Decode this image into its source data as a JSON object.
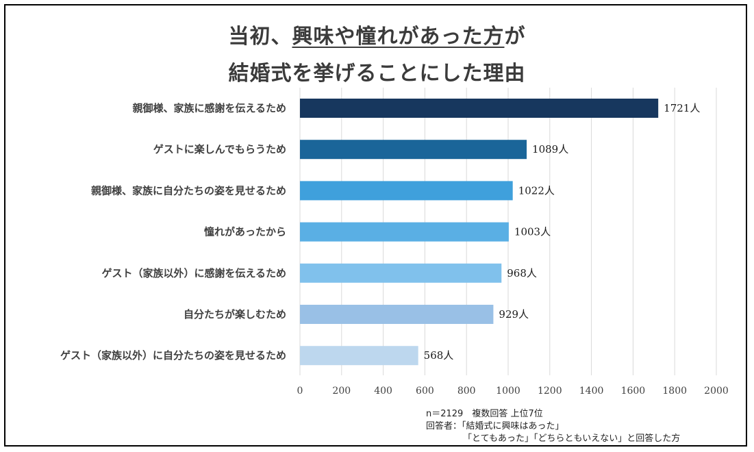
{
  "title_line1_pre": "当初、",
  "title_line1_underlined": "興味や憧れがあった方",
  "title_line1_post": "が",
  "title_line2": "結婚式を挙げることにした理由",
  "notes": {
    "line1": "n＝2129　複数回答 上位7位",
    "line2": "回答者：「結婚式に興味はあった」",
    "line3": "「とてもあった」「どちらともいえない」と回答した方"
  },
  "unit_suffix": "人",
  "chart_data": {
    "type": "bar",
    "orientation": "horizontal",
    "title": "当初、興味や憧れがあった方が結婚式を挙げることにした理由",
    "categories": [
      "親御様、家族に感謝を伝えるため",
      "ゲストに楽しんでもらうため",
      "親御様、家族に自分たちの姿を見せるため",
      "憧れがあったから",
      "ゲスト（家族以外）に感謝を伝えるため",
      "自分たちが楽しむため",
      "ゲスト（家族以外）に自分たちの姿を見せるため"
    ],
    "values": [
      1721,
      1089,
      1022,
      1003,
      968,
      929,
      568
    ],
    "value_labels": [
      "1721人",
      "1089人",
      "1022人",
      "1003人",
      "968人",
      "929人",
      "568人"
    ],
    "colors": [
      "#17375e",
      "#1a6599",
      "#3fa0dc",
      "#5aafe4",
      "#80c1ec",
      "#99c0e6",
      "#bdd7ee"
    ],
    "xlim": [
      0,
      2000
    ],
    "xticks": [
      0,
      200,
      400,
      600,
      800,
      1000,
      1200,
      1400,
      1600,
      1800,
      2000
    ],
    "xlabel": "",
    "ylabel": "",
    "grid": true
  }
}
